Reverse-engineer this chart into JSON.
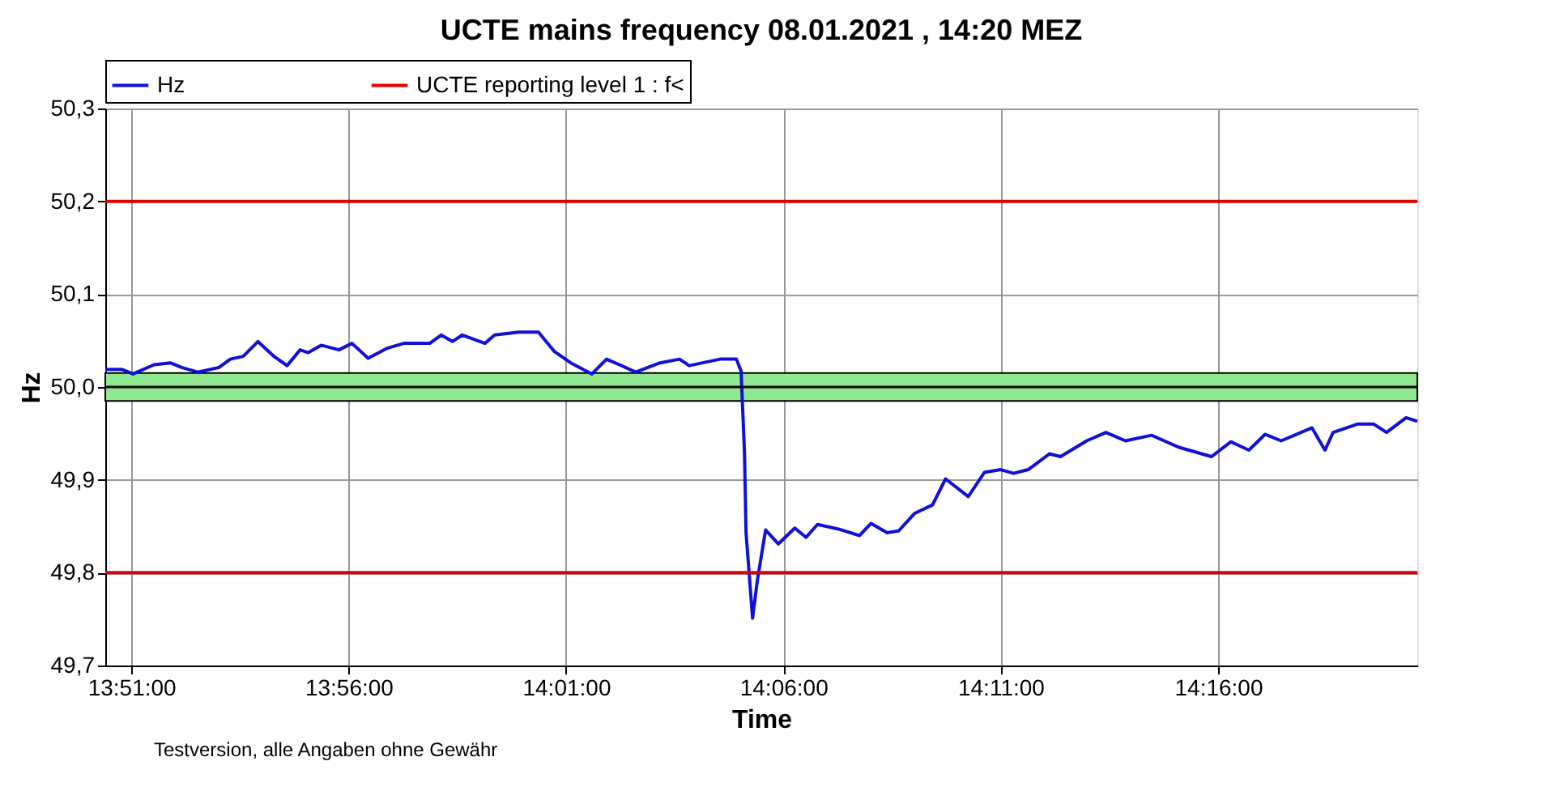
{
  "chart_data": {
    "type": "line",
    "title": "UCTE mains frequency  08.01.2021 , 14:20 MEZ",
    "xlabel": "Time",
    "ylabel": "Hz",
    "xlim": [
      13.84,
      14.3431
    ],
    "xticks": [
      {
        "value": 13.85,
        "label": "13:51:00"
      },
      {
        "value": 13.9333,
        "label": "13:56:00"
      },
      {
        "value": 14.0167,
        "label": "14:01:00"
      },
      {
        "value": 14.1,
        "label": "14:06:00"
      },
      {
        "value": 14.1833,
        "label": "14:11:00"
      },
      {
        "value": 14.2667,
        "label": "14:16:00"
      }
    ],
    "ylim": [
      49.7,
      50.3
    ],
    "yticks": [
      {
        "value": 49.7,
        "label": "49,7"
      },
      {
        "value": 49.8,
        "label": "49,8"
      },
      {
        "value": 49.9,
        "label": "49,9"
      },
      {
        "value": 50.0,
        "label": "50,0"
      },
      {
        "value": 50.1,
        "label": "50,1"
      },
      {
        "value": 50.2,
        "label": "50,2"
      },
      {
        "value": 50.3,
        "label": "50,3"
      }
    ],
    "grid": true,
    "legend": "top",
    "line_style": "solid",
    "marker": "none",
    "series": [
      {
        "name": "Hz",
        "color": "#1010d8",
        "x": [
          13.84,
          13.8463,
          13.8506,
          13.8587,
          13.8649,
          13.8693,
          13.8755,
          13.8836,
          13.8879,
          13.8929,
          13.8985,
          13.9047,
          13.9097,
          13.9147,
          13.9178,
          13.9228,
          13.9296,
          13.9346,
          13.9408,
          13.9483,
          13.9545,
          13.9644,
          13.9688,
          13.9731,
          13.9769,
          13.9856,
          13.9893,
          13.9986,
          14.0061,
          14.0123,
          14.0185,
          14.0266,
          14.0322,
          14.0372,
          14.0434,
          14.0527,
          14.0602,
          14.0639,
          14.0757,
          14.082,
          14.0838,
          14.0851,
          14.0857,
          14.0882,
          14.09,
          14.0932,
          14.0981,
          14.1044,
          14.1087,
          14.1131,
          14.1211,
          14.1292,
          14.1336,
          14.1398,
          14.1442,
          14.1504,
          14.1572,
          14.1622,
          14.1709,
          14.1771,
          14.1833,
          14.1883,
          14.1939,
          14.202,
          14.2063,
          14.2163,
          14.2237,
          14.2312,
          14.2412,
          14.2517,
          14.2642,
          14.2716,
          14.2785,
          14.2847,
          14.2909,
          14.3027,
          14.3077,
          14.3108,
          14.3201,
          14.3264,
          14.3313,
          14.3388,
          14.3431
        ],
        "values": [
          50.019,
          50.019,
          50.014,
          50.024,
          50.026,
          50.021,
          50.016,
          50.021,
          50.03,
          50.033,
          50.049,
          50.033,
          50.023,
          50.04,
          50.037,
          50.045,
          50.04,
          50.047,
          50.031,
          50.042,
          50.047,
          50.047,
          50.056,
          50.049,
          50.056,
          50.047,
          50.056,
          50.059,
          50.059,
          50.038,
          50.026,
          50.014,
          50.03,
          50.024,
          50.016,
          50.026,
          50.03,
          50.023,
          50.03,
          50.03,
          50.017,
          49.93,
          49.843,
          49.751,
          49.791,
          49.846,
          49.831,
          49.848,
          49.838,
          49.852,
          49.847,
          49.84,
          49.853,
          49.843,
          49.845,
          49.864,
          49.873,
          49.901,
          49.882,
          49.908,
          49.911,
          49.907,
          49.911,
          49.928,
          49.925,
          49.942,
          49.951,
          49.942,
          49.948,
          49.935,
          49.925,
          49.941,
          49.932,
          49.949,
          49.942,
          49.956,
          49.932,
          49.951,
          49.96,
          49.96,
          49.951,
          49.967,
          49.963
        ]
      },
      {
        "name": "UCTE reporting level 1 : f<",
        "color": "#e00000",
        "x": [
          13.84,
          14.3431
        ],
        "values": [
          50.2,
          50.2
        ]
      },
      {
        "color": "#e00000",
        "x": [
          13.84,
          14.3431
        ],
        "values": [
          49.8,
          49.8
        ]
      }
    ],
    "bands": [
      {
        "axis": "y",
        "from": 49.985,
        "to": 50.015,
        "color": "#90e890"
      }
    ],
    "ref_lines": [
      {
        "axis": "y",
        "value": 50.0,
        "color": "#000000",
        "line_style": "solid"
      }
    ],
    "annotations": [
      "Testversion, alle Angaben ohne Gewähr"
    ]
  }
}
